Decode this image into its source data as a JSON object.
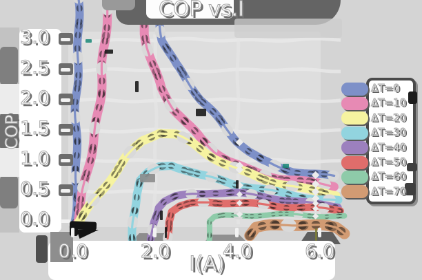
{
  "title": "COP vs.I",
  "chart_data": {
    "type": "line",
    "title": "COP vs.I",
    "xlabel": "I(A)",
    "ylabel": "COP",
    "xlim": [
      0,
      6.7
    ],
    "ylim": [
      0,
      3.2
    ],
    "grid": true,
    "legend_position": "right",
    "style": "xkcd-sketch, thick textured strokes, white outlined labels",
    "x_ticks": [
      {
        "label": "0.0",
        "value": 0.0
      },
      {
        "label": "2.0",
        "value": 2.0
      },
      {
        "label": "4.0",
        "value": 4.0
      },
      {
        "label": "6.0",
        "value": 6.0
      }
    ],
    "y_ticks": [
      {
        "label": "3.0",
        "value": 3.0
      },
      {
        "label": "2.5",
        "value": 2.5
      },
      {
        "label": "2.0",
        "value": 2.0
      },
      {
        "label": "1.5",
        "value": 1.5
      },
      {
        "label": "1.0",
        "value": 1.0
      },
      {
        "label": "0.5",
        "value": 0.5
      },
      {
        "label": "0.0",
        "value": 0.0
      }
    ],
    "series": [
      {
        "name": "ΔT=0",
        "color": "#7d90c8",
        "points": [
          [
            0.04,
            -0.02
          ],
          [
            0.07,
            0.8
          ],
          [
            0.09,
            1.8
          ],
          [
            0.11,
            2.8
          ],
          [
            0.13,
            3.8
          ],
          [
            0.4,
            5.0
          ],
          [
            1.5,
            5.0
          ],
          [
            1.85,
            4.1
          ],
          [
            2.05,
            3.55
          ],
          [
            2.2,
            3.0
          ],
          [
            2.5,
            2.6
          ],
          [
            2.8,
            2.3
          ],
          [
            3.1,
            2.0
          ],
          [
            3.4,
            1.78
          ],
          [
            3.7,
            1.55
          ],
          [
            4.0,
            1.34
          ],
          [
            4.3,
            1.16
          ],
          [
            4.6,
            1.02
          ],
          [
            4.95,
            0.92
          ],
          [
            5.35,
            0.83
          ],
          [
            5.75,
            0.78
          ],
          [
            6.1,
            0.75
          ],
          [
            6.35,
            0.73
          ]
        ]
      },
      {
        "name": "ΔT=10",
        "color": "#e78ab4",
        "points": [
          [
            0.08,
            -0.02
          ],
          [
            0.3,
            0.6
          ],
          [
            0.5,
            1.35
          ],
          [
            0.65,
            2.1
          ],
          [
            0.78,
            2.9
          ],
          [
            0.88,
            3.8
          ],
          [
            1.05,
            4.6
          ],
          [
            1.3,
            4.4
          ],
          [
            1.6,
            3.8
          ],
          [
            1.75,
            3.1
          ],
          [
            1.95,
            2.6
          ],
          [
            2.15,
            2.2
          ],
          [
            2.45,
            1.85
          ],
          [
            2.75,
            1.6
          ],
          [
            3.1,
            1.36
          ],
          [
            3.45,
            1.16
          ],
          [
            3.8,
            1.0
          ],
          [
            4.2,
            0.88
          ],
          [
            4.6,
            0.79
          ],
          [
            5.05,
            0.71
          ],
          [
            5.55,
            0.65
          ],
          [
            6.0,
            0.61
          ],
          [
            6.35,
            0.58
          ]
        ]
      },
      {
        "name": "ΔT=20",
        "color": "#f6f3a0",
        "points": [
          [
            0.12,
            -0.02
          ],
          [
            0.5,
            0.35
          ],
          [
            0.9,
            0.72
          ],
          [
            1.3,
            1.06
          ],
          [
            1.7,
            1.33
          ],
          [
            2.1,
            1.46
          ],
          [
            2.5,
            1.43
          ],
          [
            2.9,
            1.29
          ],
          [
            3.3,
            1.12
          ],
          [
            3.7,
            0.97
          ],
          [
            4.1,
            0.84
          ],
          [
            4.55,
            0.72
          ],
          [
            5.0,
            0.62
          ],
          [
            5.5,
            0.54
          ],
          [
            6.0,
            0.48
          ],
          [
            6.4,
            0.45
          ]
        ]
      },
      {
        "name": "ΔT=30",
        "color": "#92d4df",
        "points": [
          [
            1.45,
            -0.32
          ],
          [
            1.47,
            0.0
          ],
          [
            1.55,
            0.45
          ],
          [
            1.65,
            0.67
          ],
          [
            1.85,
            0.8
          ],
          [
            2.1,
            0.9
          ],
          [
            2.4,
            0.94
          ],
          [
            2.75,
            0.87
          ],
          [
            3.1,
            0.78
          ],
          [
            3.5,
            0.7
          ],
          [
            3.9,
            0.62
          ],
          [
            4.35,
            0.55
          ],
          [
            4.8,
            0.49
          ],
          [
            5.3,
            0.43
          ],
          [
            5.8,
            0.39
          ],
          [
            6.45,
            0.35
          ]
        ]
      },
      {
        "name": "ΔT=40",
        "color": "#9c80be",
        "points": [
          [
            1.92,
            -0.3
          ],
          [
            1.95,
            0.0
          ],
          [
            2.05,
            0.24
          ],
          [
            2.2,
            0.34
          ],
          [
            2.5,
            0.42
          ],
          [
            2.9,
            0.46
          ],
          [
            3.4,
            0.48
          ],
          [
            3.9,
            0.46
          ],
          [
            4.4,
            0.42
          ],
          [
            4.9,
            0.38
          ],
          [
            5.4,
            0.34
          ],
          [
            5.9,
            0.3
          ],
          [
            6.45,
            0.26
          ]
        ]
      },
      {
        "name": "ΔT=50",
        "color": "#e06d6b",
        "points": [
          [
            2.28,
            -0.28
          ],
          [
            2.31,
            0.0
          ],
          [
            2.4,
            0.16
          ],
          [
            2.6,
            0.23
          ],
          [
            2.9,
            0.28
          ],
          [
            3.3,
            0.31
          ],
          [
            3.8,
            0.31
          ],
          [
            4.3,
            0.3
          ],
          [
            4.8,
            0.28
          ],
          [
            5.3,
            0.25
          ],
          [
            5.8,
            0.22
          ],
          [
            6.5,
            0.17
          ]
        ]
      },
      {
        "name": "ΔT=60",
        "color": "#8ecba9",
        "points": [
          [
            3.3,
            -0.35
          ],
          [
            3.33,
            0.0
          ],
          [
            3.45,
            0.07
          ],
          [
            3.7,
            0.1
          ],
          [
            4.1,
            0.12
          ],
          [
            4.6,
            0.12
          ],
          [
            5.1,
            0.11
          ],
          [
            5.6,
            0.1
          ],
          [
            6.1,
            0.08
          ],
          [
            6.6,
            0.07
          ]
        ]
      },
      {
        "name": "ΔT=70",
        "color": "#d29b73",
        "points": [
          [
            4.28,
            -0.22
          ],
          [
            4.45,
            -0.1
          ],
          [
            4.8,
            -0.07
          ],
          [
            5.2,
            -0.06
          ],
          [
            5.7,
            -0.06
          ],
          [
            6.1,
            -0.08
          ],
          [
            6.4,
            -0.12
          ],
          [
            6.6,
            -0.2
          ]
        ]
      }
    ]
  }
}
